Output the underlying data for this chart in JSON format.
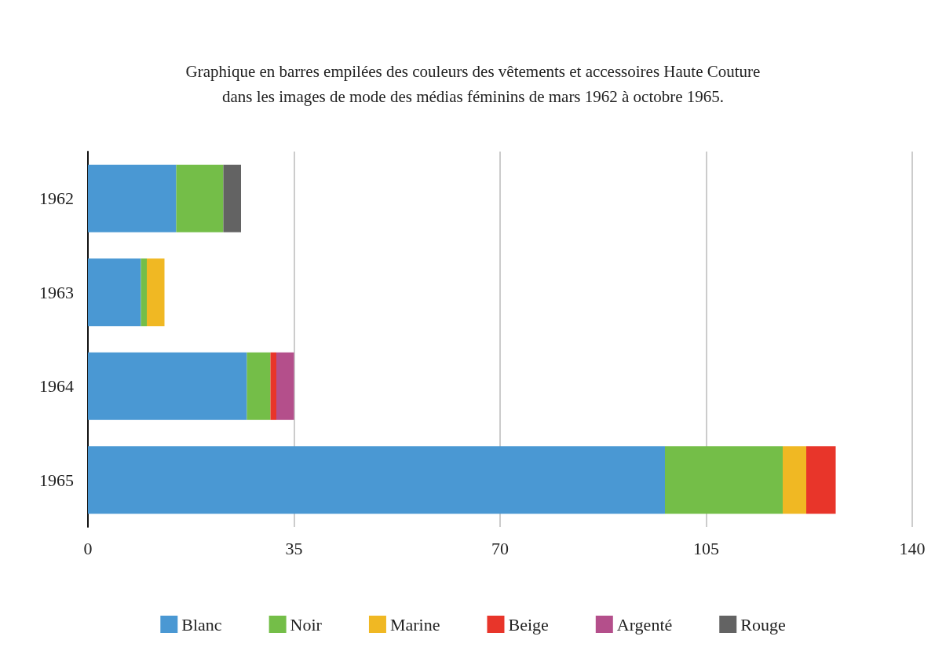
{
  "chart_data": {
    "type": "bar",
    "orientation": "horizontal",
    "stacked": true,
    "title": "Graphique en barres empilées des couleurs des vêtements et accessoires Haute Couture\ndans les images de mode des médias féminins de mars 1962 à octobre 1965.",
    "categories": [
      "1962",
      "1963",
      "1964",
      "1965"
    ],
    "series": [
      {
        "name": "Blanc",
        "color": "#4a98d3",
        "values": [
          15,
          9,
          27,
          98
        ]
      },
      {
        "name": "Noir",
        "color": "#74be48",
        "values": [
          8,
          1,
          4,
          20
        ]
      },
      {
        "name": "Marine",
        "color": "#f0b823",
        "values": [
          null,
          3,
          null,
          4
        ]
      },
      {
        "name": "Beige",
        "color": "#e8352a",
        "values": [
          null,
          null,
          1,
          5
        ]
      },
      {
        "name": "Argenté",
        "color": "#b44f8b",
        "values": [
          null,
          null,
          3,
          null
        ]
      },
      {
        "name": "Rouge",
        "color": "#636363",
        "values": [
          3,
          null,
          null,
          null
        ]
      }
    ],
    "xlim": [
      0,
      140
    ],
    "xticks": [
      0,
      35,
      70,
      105,
      140
    ],
    "grid": "x",
    "legend": "bottom"
  }
}
